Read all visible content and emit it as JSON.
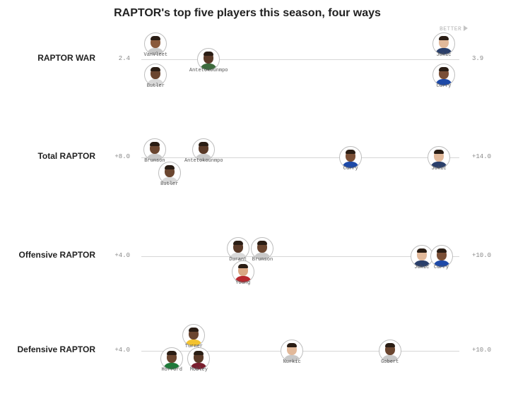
{
  "title": "RAPTOR's top five players this season, four ways",
  "better_label": "BETTER",
  "colors": {
    "track": "#d6d6d6",
    "title": "#222222",
    "muted": "#888888"
  },
  "chart_data": [
    {
      "type": "scatter",
      "label": "RAPTOR WAR",
      "min_label": "2.4",
      "max_label": "3.9",
      "range": [
        2.4,
        3.9
      ],
      "players": [
        {
          "name": "VanVleet",
          "value": 2.43,
          "lane": -1,
          "label_pos": "below",
          "skin": "#8a5a3c",
          "shirt": "#c9c9c9"
        },
        {
          "name": "Butler",
          "value": 2.43,
          "lane": 1,
          "label_pos": "below",
          "skin": "#6b4630",
          "shirt": "#d9d9d9"
        },
        {
          "name": "Antetokounmpo",
          "value": 2.7,
          "lane": 0,
          "label_pos": "below",
          "skin": "#5a3a28",
          "shirt": "#3d6b3d"
        },
        {
          "name": "Jokic",
          "value": 3.9,
          "lane": -1,
          "label_pos": "below",
          "skin": "#e2b99a",
          "shirt": "#2a3f6b"
        },
        {
          "name": "Curry",
          "value": 3.9,
          "lane": 1,
          "label_pos": "below",
          "skin": "#7a4f36",
          "shirt": "#1e4aa8"
        }
      ]
    },
    {
      "type": "scatter",
      "label": "Total RAPTOR",
      "min_label": "+8.0",
      "max_label": "+14.0",
      "range": [
        8.0,
        14.0
      ],
      "players": [
        {
          "name": "Brunson",
          "value": 8.1,
          "lane": -0.5,
          "label_pos": "below",
          "skin": "#6b4630",
          "shirt": "#c9c9c9"
        },
        {
          "name": "Antetokounmpo",
          "value": 9.1,
          "lane": -0.5,
          "label_pos": "below",
          "skin": "#5a3a28",
          "shirt": "#c9c9c9"
        },
        {
          "name": "Butler",
          "value": 8.4,
          "lane": 1,
          "label_pos": "below",
          "skin": "#6b4630",
          "shirt": "#d9d9d9"
        },
        {
          "name": "Curry",
          "value": 12.1,
          "lane": 0,
          "label_pos": "below",
          "skin": "#7a4f36",
          "shirt": "#1e4aa8"
        },
        {
          "name": "Jokic",
          "value": 13.9,
          "lane": 0,
          "label_pos": "below",
          "skin": "#e2b99a",
          "shirt": "#2a3f6b"
        }
      ]
    },
    {
      "type": "scatter",
      "label": "Offensive RAPTOR",
      "min_label": "+4.0",
      "max_label": "+10.0",
      "range": [
        4.0,
        10.0
      ],
      "players": [
        {
          "name": "Durant",
          "value": 5.8,
          "lane": -0.5,
          "label_pos": "below",
          "skin": "#5a3a28",
          "shirt": "#d9d9d9"
        },
        {
          "name": "Brunson",
          "value": 6.3,
          "lane": -0.5,
          "label_pos": "below",
          "skin": "#6b4630",
          "shirt": "#c9c9c9"
        },
        {
          "name": "Young",
          "value": 5.9,
          "lane": 1,
          "label_pos": "below",
          "skin": "#d9a884",
          "shirt": "#b8282e"
        },
        {
          "name": "Jokic",
          "value": 9.55,
          "lane": 0,
          "label_pos": "below",
          "skin": "#e2b99a",
          "shirt": "#2a3f6b"
        },
        {
          "name": "Curry",
          "value": 9.95,
          "lane": 0,
          "label_pos": "below",
          "skin": "#7a4f36",
          "shirt": "#1e4aa8"
        }
      ]
    },
    {
      "type": "scatter",
      "label": "Defensive RAPTOR",
      "min_label": "+4.0",
      "max_label": "+10.0",
      "range": [
        4.0,
        10.0
      ],
      "players": [
        {
          "name": "Turner",
          "value": 4.9,
          "lane": -1,
          "label_pos": "below",
          "skin": "#6b4630",
          "shirt": "#f2c230"
        },
        {
          "name": "Horford",
          "value": 4.45,
          "lane": 0.5,
          "label_pos": "below",
          "skin": "#6b4630",
          "shirt": "#1f7a3a"
        },
        {
          "name": "Mobley",
          "value": 5.0,
          "lane": 0.5,
          "label_pos": "below",
          "skin": "#5a3a28",
          "shirt": "#7a1f2e"
        },
        {
          "name": "Nurkic",
          "value": 6.9,
          "lane": 0,
          "label_pos": "below",
          "skin": "#e2b99a",
          "shirt": "#c8c8c8"
        },
        {
          "name": "Gobert",
          "value": 8.9,
          "lane": 0,
          "label_pos": "below",
          "skin": "#6b4630",
          "shirt": "#c9c9c9"
        }
      ]
    }
  ]
}
